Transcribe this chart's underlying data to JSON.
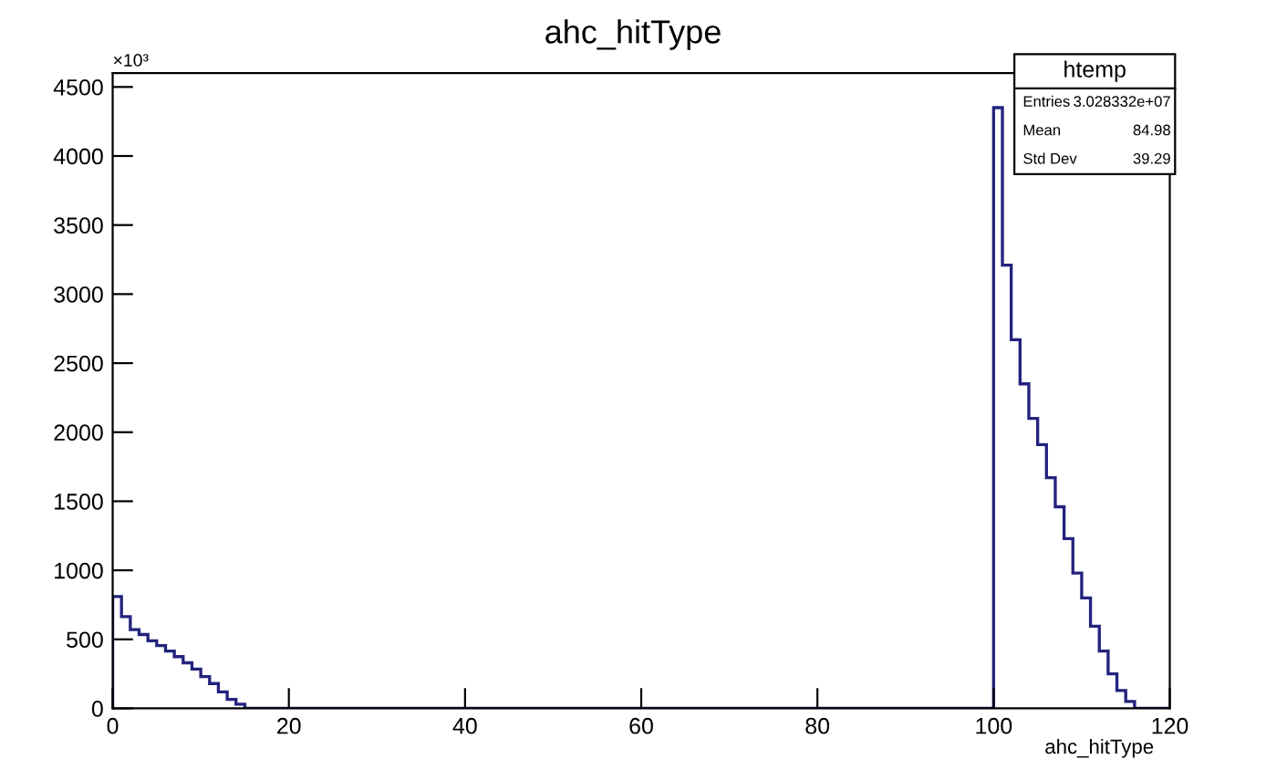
{
  "chart_data": {
    "type": "histogram",
    "title": "ahc_hitType",
    "xlabel": "ahc_hitType",
    "bins": [
      0,
      1,
      2,
      3,
      4,
      5,
      6,
      7,
      8,
      9,
      10,
      11,
      12,
      13,
      14,
      15,
      16,
      17,
      18,
      19,
      20,
      21,
      22,
      23,
      24,
      25,
      26,
      27,
      28,
      29,
      30,
      31,
      32,
      33,
      34,
      35,
      36,
      37,
      38,
      39,
      40,
      41,
      42,
      43,
      44,
      45,
      46,
      47,
      48,
      49,
      50,
      51,
      52,
      53,
      54,
      55,
      56,
      57,
      58,
      59,
      60,
      61,
      62,
      63,
      64,
      65,
      66,
      67,
      68,
      69,
      70,
      71,
      72,
      73,
      74,
      75,
      76,
      77,
      78,
      79,
      80,
      81,
      82,
      83,
      84,
      85,
      86,
      87,
      88,
      89,
      90,
      91,
      92,
      93,
      94,
      95,
      96,
      97,
      98,
      99,
      100,
      101,
      102,
      103,
      104,
      105,
      106,
      107,
      108,
      109,
      110,
      111,
      112,
      113,
      114,
      115,
      116,
      117,
      118,
      119,
      120
    ],
    "values": [
      810,
      665,
      570,
      535,
      490,
      455,
      415,
      375,
      330,
      285,
      230,
      180,
      120,
      65,
      30,
      0,
      0,
      0,
      0,
      0,
      0,
      0,
      0,
      0,
      0,
      0,
      0,
      0,
      0,
      0,
      0,
      0,
      0,
      0,
      0,
      0,
      0,
      0,
      0,
      0,
      0,
      0,
      0,
      0,
      0,
      0,
      0,
      0,
      0,
      0,
      0,
      0,
      0,
      0,
      0,
      0,
      0,
      0,
      0,
      0,
      0,
      0,
      0,
      0,
      0,
      0,
      0,
      0,
      0,
      0,
      0,
      0,
      0,
      0,
      0,
      0,
      0,
      0,
      0,
      0,
      0,
      0,
      0,
      0,
      0,
      0,
      0,
      0,
      0,
      0,
      0,
      0,
      0,
      0,
      0,
      0,
      0,
      0,
      0,
      0,
      4350,
      3210,
      2670,
      2350,
      2100,
      1910,
      1670,
      1460,
      1230,
      980,
      800,
      595,
      415,
      250,
      130,
      50,
      0,
      0,
      0,
      0
    ],
    "color": "#23237e",
    "xlim": [
      0,
      120
    ],
    "ylim": [
      0,
      4600
    ],
    "xticks": [
      0,
      20,
      40,
      60,
      80,
      100,
      120
    ],
    "yticks": [
      0,
      500,
      1000,
      1500,
      2000,
      2500,
      3000,
      3500,
      4000,
      4500
    ],
    "grid": false,
    "legend": false,
    "annotations": [
      "×10³",
      "htemp",
      "Entries",
      "3.028332e+07",
      "Mean",
      "84.98",
      "Std Dev",
      "39.29"
    ]
  }
}
